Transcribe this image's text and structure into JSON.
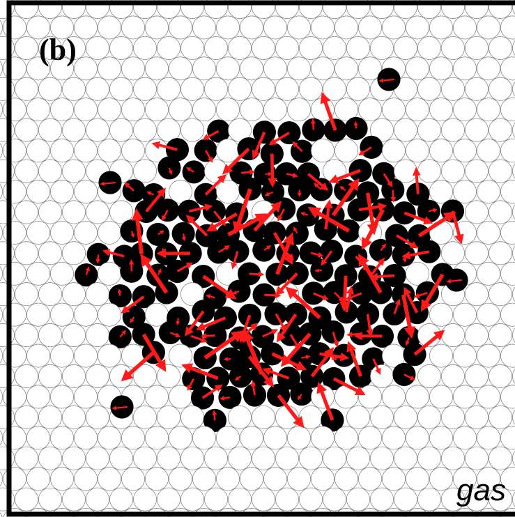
{
  "panel": {
    "label": "(b)",
    "phase": "gas"
  }
}
